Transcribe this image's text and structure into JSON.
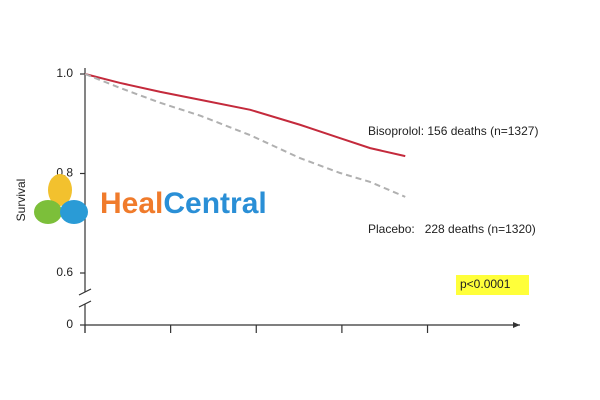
{
  "chart_data": {
    "type": "line",
    "y_label": "Survival",
    "x": [
      0,
      0.41,
      0.88,
      1.35,
      1.93,
      2.51,
      2.98,
      3.33,
      3.74
    ],
    "series": [
      {
        "name": "Bisoprolol: 156 deaths (n=1327)",
        "color": "#c42a3c",
        "dash": false,
        "values": [
          1.0,
          0.982,
          0.964,
          0.948,
          0.928,
          0.898,
          0.871,
          0.851,
          0.835
        ]
      },
      {
        "name": "Placebo:   228 deaths (n=1320)",
        "color": "#b0b0b0",
        "dash": true,
        "values": [
          1.0,
          0.972,
          0.942,
          0.916,
          0.877,
          0.831,
          0.801,
          0.783,
          0.753
        ]
      }
    ],
    "xlim": [
      0,
      5.08
    ],
    "xticks": [
      0,
      1,
      2,
      3,
      4
    ],
    "ylim": [
      0.6,
      1.0
    ],
    "yticks": [
      {
        "value": 1.0,
        "label": "1.0"
      },
      {
        "value": 0.8,
        "label": "0.8"
      },
      0.6,
      0
    ],
    "axis_break": true,
    "annotation": "p<0.0001"
  },
  "watermark": {
    "first": "Heal",
    "second": "Central"
  }
}
